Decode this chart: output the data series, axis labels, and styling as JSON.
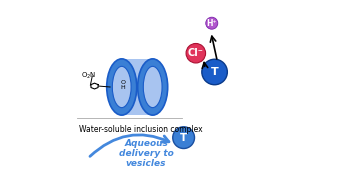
{
  "bg_color": "#ffffff",
  "label_inclusion": "Water-soluble inclusion complex",
  "label_aqueous": "Aqueous\ndelivery to\nvesicles",
  "label_Cl": "Cl⁻",
  "label_H": "H⁺",
  "label_T": "T",
  "blue_dark": "#1a5cc8",
  "blue_mid": "#3a7fd5",
  "blue_light": "#a8c4f0",
  "blue_arrow": "#4488dd",
  "orange_head": "#f5a623",
  "orange_tail": "#e8883a",
  "cyan_bg": "#7dd8e0",
  "pink_Cl": "#e0335a",
  "purple_H": "#b055cc",
  "black": "#000000",
  "white": "#ffffff"
}
